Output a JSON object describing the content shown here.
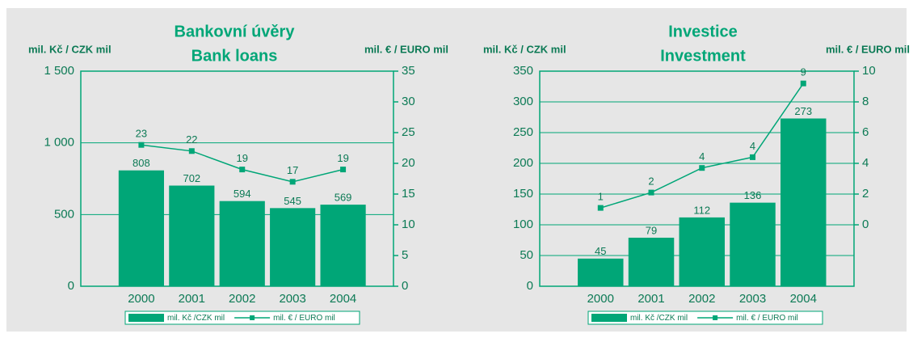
{
  "chart_data": [
    {
      "type": "bar",
      "title": "Bankovní úvěry",
      "subtitle": "Bank loans",
      "ylabel": "mil. Kč / CZK mil",
      "y2label": "mil. € / EURO mil",
      "categories": [
        "2000",
        "2001",
        "2002",
        "2003",
        "2004"
      ],
      "series": [
        {
          "name": "mil. Kč /CZK mil",
          "type": "bar",
          "color": "#00a677",
          "values": [
            808,
            702,
            594,
            545,
            569
          ]
        },
        {
          "name": "mil. € / EURO mil",
          "type": "line",
          "axis": "y2",
          "color": "#00a677",
          "values": [
            23,
            22,
            19,
            17,
            19
          ]
        }
      ],
      "ylim": [
        0,
        1500
      ],
      "yticks": [
        0,
        500,
        {
          "value": 1000,
          "label": "1 000"
        },
        {
          "value": 1500,
          "label": "1 500"
        }
      ],
      "y2lim": [
        0,
        35
      ],
      "y2ticks": [
        0,
        5,
        10,
        15,
        20,
        25,
        30,
        35
      ],
      "grid": true,
      "legend": "bottom"
    },
    {
      "type": "bar",
      "title": "Investice",
      "subtitle": "Investment",
      "ylabel": "mil. Kč / CZK mil",
      "y2label": "mil. € / EURO mil",
      "categories": [
        "2000",
        "2001",
        "2002",
        "2003",
        "2004"
      ],
      "series": [
        {
          "name": "mil. Kč /CZK mil",
          "type": "bar",
          "color": "#00a677",
          "values": [
            45,
            79,
            112,
            136,
            273
          ]
        },
        {
          "name": "mil. € / EURO mil",
          "type": "line",
          "axis": "y2",
          "color": "#00a677",
          "values": [
            1.1,
            2.1,
            3.7,
            4.4,
            9.2
          ],
          "value_labels": [
            "1",
            "2",
            "4",
            "4",
            "9"
          ]
        }
      ],
      "ylim": [
        0,
        350
      ],
      "yticks": [
        0,
        50,
        100,
        150,
        200,
        250,
        300,
        350
      ],
      "y2lim": [
        -4,
        10
      ],
      "y2ticks": [
        0,
        2,
        4,
        6,
        8,
        10
      ],
      "grid": true,
      "legend": "bottom"
    }
  ]
}
